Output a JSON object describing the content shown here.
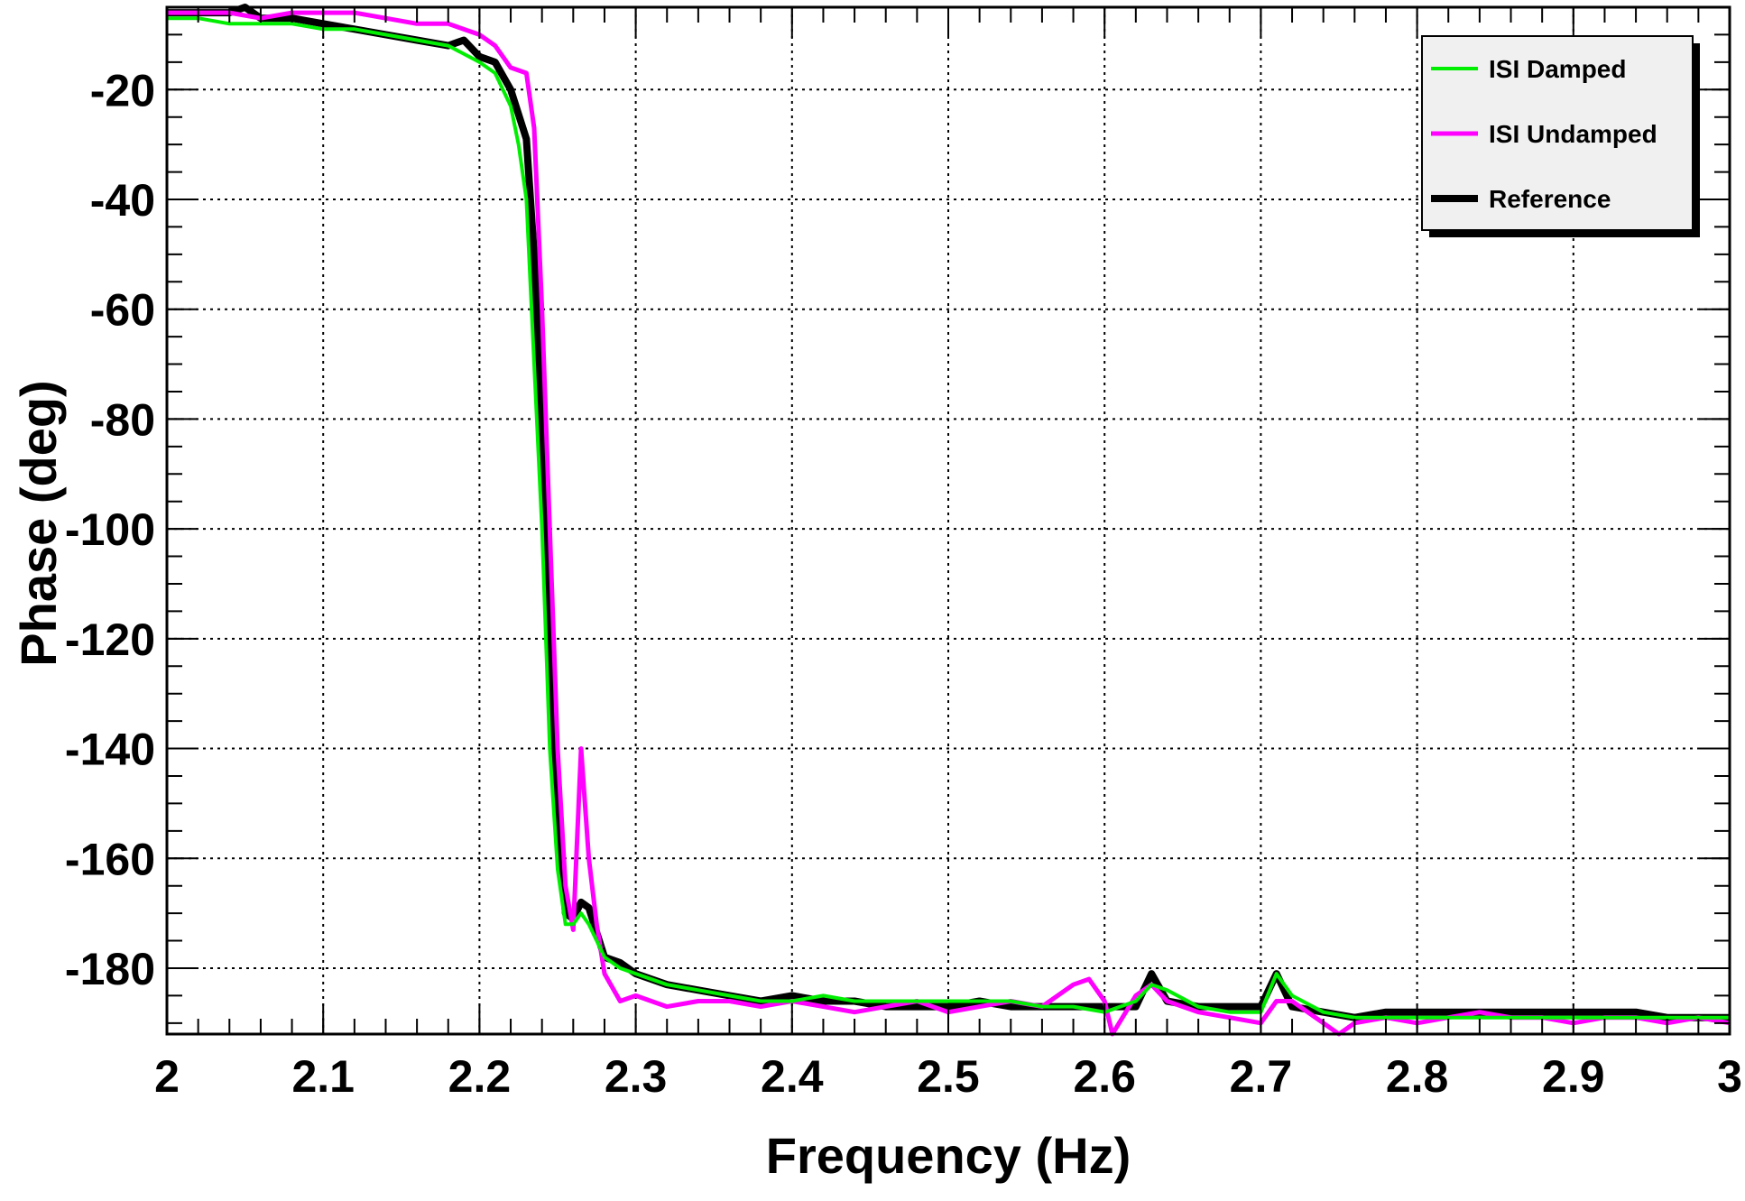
{
  "chart_data": {
    "type": "line",
    "title": "",
    "xlabel": "Frequency (Hz)",
    "ylabel": "Phase (deg)",
    "xlim": [
      2.0,
      3.0
    ],
    "ylim": [
      -192,
      -5
    ],
    "grid": true,
    "legend_position": "top-right",
    "x_ticks": [
      2.0,
      2.1,
      2.2,
      2.3,
      2.4,
      2.5,
      2.6,
      2.7,
      2.8,
      2.9,
      3.0
    ],
    "x_tick_labels": [
      "2",
      "2.1",
      "2.2",
      "2.3",
      "2.4",
      "2.5",
      "2.6",
      "2.7",
      "2.8",
      "2.9",
      "3"
    ],
    "y_ticks": [
      -20,
      -40,
      -60,
      -80,
      -100,
      -120,
      -140,
      -160,
      -180
    ],
    "y_tick_labels": [
      "-20",
      "-40",
      "-60",
      "-80",
      "-100",
      "-120",
      "-140",
      "-160",
      "-180"
    ],
    "series": [
      {
        "name": "ISI Damped",
        "color": "#00ee00",
        "x": [
          2.0,
          2.02,
          2.04,
          2.06,
          2.08,
          2.1,
          2.12,
          2.14,
          2.16,
          2.18,
          2.2,
          2.21,
          2.22,
          2.225,
          2.23,
          2.235,
          2.24,
          2.245,
          2.25,
          2.255,
          2.26,
          2.265,
          2.27,
          2.28,
          2.29,
          2.3,
          2.32,
          2.34,
          2.36,
          2.38,
          2.4,
          2.42,
          2.44,
          2.46,
          2.48,
          2.5,
          2.52,
          2.54,
          2.56,
          2.58,
          2.6,
          2.62,
          2.63,
          2.64,
          2.66,
          2.68,
          2.7,
          2.71,
          2.72,
          2.74,
          2.76,
          2.78,
          2.8,
          2.82,
          2.84,
          2.86,
          2.88,
          2.9,
          2.92,
          2.94,
          2.96,
          2.98,
          3.0
        ],
        "y": [
          -7,
          -7,
          -8,
          -8,
          -8,
          -9,
          -9,
          -10,
          -11,
          -12,
          -15,
          -17,
          -23,
          -30,
          -40,
          -70,
          -100,
          -140,
          -162,
          -172,
          -172,
          -170,
          -172,
          -178,
          -180,
          -181,
          -183,
          -184,
          -185,
          -186,
          -186,
          -185,
          -186,
          -186,
          -186,
          -186,
          -186,
          -186,
          -187,
          -187,
          -188,
          -186,
          -183,
          -184,
          -187,
          -188,
          -188,
          -181,
          -185,
          -188,
          -189,
          -189,
          -189,
          -189,
          -189,
          -189,
          -189,
          -189,
          -189,
          -189,
          -189,
          -189,
          -189
        ]
      },
      {
        "name": "ISI Undamped",
        "color": "#ff00ff",
        "x": [
          2.0,
          2.02,
          2.04,
          2.06,
          2.08,
          2.1,
          2.12,
          2.14,
          2.16,
          2.18,
          2.2,
          2.21,
          2.22,
          2.23,
          2.235,
          2.24,
          2.245,
          2.25,
          2.255,
          2.26,
          2.265,
          2.27,
          2.275,
          2.28,
          2.29,
          2.3,
          2.32,
          2.34,
          2.36,
          2.38,
          2.4,
          2.42,
          2.44,
          2.46,
          2.48,
          2.5,
          2.52,
          2.54,
          2.56,
          2.58,
          2.59,
          2.6,
          2.605,
          2.62,
          2.63,
          2.64,
          2.66,
          2.68,
          2.7,
          2.71,
          2.72,
          2.74,
          2.75,
          2.76,
          2.78,
          2.8,
          2.82,
          2.84,
          2.86,
          2.88,
          2.9,
          2.92,
          2.94,
          2.96,
          2.98,
          3.0
        ],
        "y": [
          -6,
          -6,
          -6,
          -7,
          -6,
          -6,
          -6,
          -7,
          -8,
          -8,
          -10,
          -12,
          -16,
          -17,
          -27,
          -60,
          -100,
          -140,
          -165,
          -173,
          -140,
          -160,
          -172,
          -181,
          -186,
          -185,
          -187,
          -186,
          -186,
          -187,
          -186,
          -187,
          -188,
          -187,
          -186,
          -188,
          -187,
          -186,
          -187,
          -183,
          -182,
          -186,
          -192,
          -185,
          -183,
          -186,
          -188,
          -189,
          -190,
          -186,
          -186,
          -190,
          -192,
          -190,
          -189,
          -190,
          -189,
          -188,
          -189,
          -189,
          -190,
          -189,
          -189,
          -190,
          -189,
          -190
        ]
      },
      {
        "name": "Reference",
        "color": "#000000",
        "x": [
          2.0,
          2.02,
          2.04,
          2.05,
          2.06,
          2.08,
          2.1,
          2.12,
          2.14,
          2.16,
          2.18,
          2.19,
          2.2,
          2.21,
          2.22,
          2.23,
          2.235,
          2.24,
          2.245,
          2.25,
          2.255,
          2.26,
          2.265,
          2.27,
          2.28,
          2.29,
          2.3,
          2.32,
          2.34,
          2.36,
          2.38,
          2.4,
          2.42,
          2.44,
          2.46,
          2.48,
          2.5,
          2.52,
          2.54,
          2.56,
          2.58,
          2.6,
          2.62,
          2.63,
          2.64,
          2.66,
          2.68,
          2.7,
          2.71,
          2.72,
          2.74,
          2.76,
          2.78,
          2.8,
          2.82,
          2.84,
          2.86,
          2.88,
          2.9,
          2.92,
          2.94,
          2.96,
          2.98,
          3.0
        ],
        "y": [
          -6,
          -6,
          -6,
          -5,
          -7,
          -7,
          -8,
          -9,
          -10,
          -11,
          -12,
          -11,
          -14,
          -15,
          -20,
          -29,
          -50,
          -85,
          -125,
          -152,
          -170,
          -171,
          -168,
          -169,
          -178,
          -179,
          -181,
          -183,
          -184,
          -185,
          -186,
          -185,
          -186,
          -186,
          -187,
          -187,
          -187,
          -186,
          -187,
          -187,
          -187,
          -187,
          -187,
          -181,
          -186,
          -187,
          -187,
          -187,
          -181,
          -187,
          -188,
          -189,
          -188,
          -188,
          -188,
          -188,
          -188,
          -188,
          -188,
          -188,
          -188,
          -189,
          -189,
          -189
        ]
      }
    ]
  }
}
